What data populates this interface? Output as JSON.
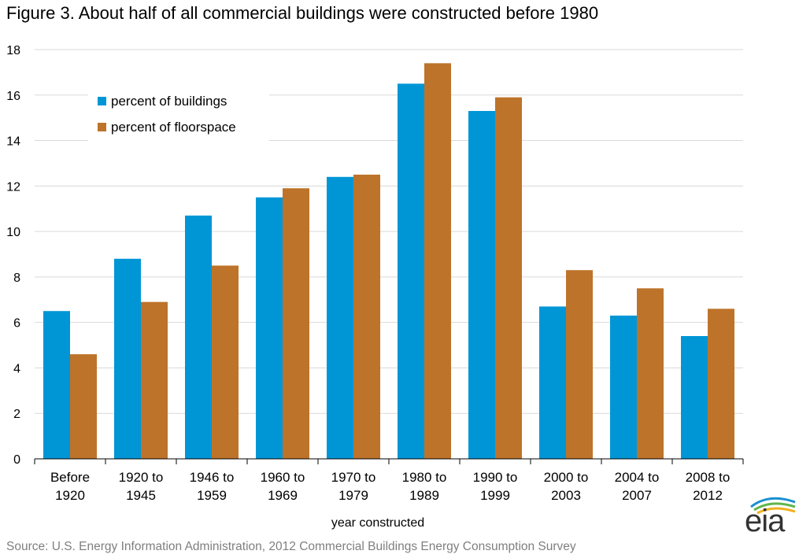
{
  "title": "Figure 3. About half of all commercial buildings were constructed before 1980",
  "source": "Source: U.S. Energy Information Administration,  2012 Commercial Buildings Energy Consumption Survey",
  "logo_text": "eia",
  "chart_data": {
    "type": "bar",
    "categories": [
      [
        "Before",
        "1920"
      ],
      [
        "1920 to",
        "1945"
      ],
      [
        "1946 to",
        "1959"
      ],
      [
        "1960 to",
        "1969"
      ],
      [
        "1970 to",
        "1979"
      ],
      [
        "1980 to",
        "1989"
      ],
      [
        "1990 to",
        "1999"
      ],
      [
        "2000 to",
        "2003"
      ],
      [
        "2004 to",
        "2007"
      ],
      [
        "2008 to",
        "2012"
      ]
    ],
    "series": [
      {
        "name": "percent of buildings",
        "color": "#0096d6",
        "values": [
          6.5,
          8.8,
          10.7,
          11.5,
          12.4,
          16.5,
          15.3,
          6.7,
          6.3,
          5.4
        ]
      },
      {
        "name": "percent of floorspace",
        "color": "#bd732a",
        "values": [
          4.6,
          6.9,
          8.5,
          11.9,
          12.5,
          17.4,
          15.9,
          8.3,
          7.5,
          6.6
        ]
      }
    ],
    "xlabel": "year constructed",
    "ylabel": "",
    "ylim": [
      0,
      18
    ],
    "yticks": [
      0,
      2,
      4,
      6,
      8,
      10,
      12,
      14,
      16,
      18
    ],
    "grid": true,
    "legend_position": "top-left"
  }
}
